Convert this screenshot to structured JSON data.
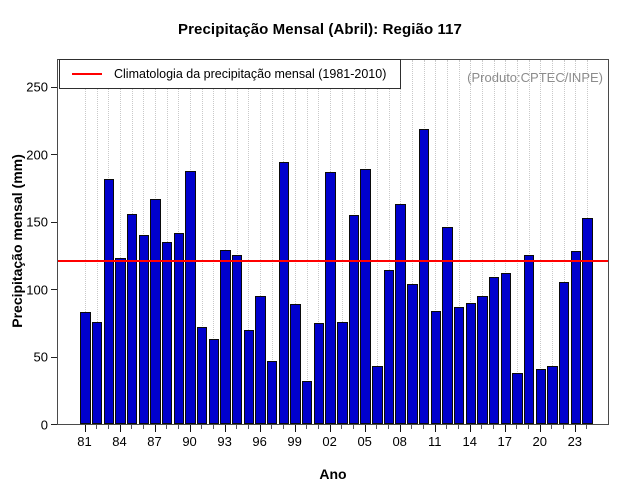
{
  "chart_data": {
    "type": "bar",
    "title": "Precipitação Mensal (Abril): Região 117",
    "xlabel": "Ano",
    "ylabel": "Precipitação mensal (mm)",
    "annotation": "(Produto:CPTEC/INPE)",
    "legend_label": "Climatologia da precipitação mensal (1981-2010)",
    "legend_position": "top-left-inside",
    "grid": "vertical-dotted",
    "x": [
      1981,
      1982,
      1983,
      1984,
      1985,
      1986,
      1987,
      1988,
      1989,
      1990,
      1991,
      1992,
      1993,
      1994,
      1995,
      1996,
      1997,
      1998,
      1999,
      2000,
      2001,
      2002,
      2003,
      2004,
      2005,
      2006,
      2007,
      2008,
      2009,
      2010,
      2011,
      2012,
      2013,
      2014,
      2015,
      2016,
      2017,
      2018,
      2019,
      2020,
      2021,
      2022,
      2023,
      2024
    ],
    "values": [
      83,
      76,
      182,
      123,
      156,
      140,
      167,
      135,
      142,
      188,
      72,
      63,
      129,
      125,
      70,
      95,
      47,
      194,
      89,
      32,
      75,
      187,
      76,
      155,
      189,
      43,
      114,
      163,
      104,
      219,
      84,
      146,
      87,
      90,
      95,
      109,
      112,
      38,
      125,
      41,
      43,
      105,
      128,
      153
    ],
    "x_tick_labels": [
      "81",
      "84",
      "87",
      "90",
      "93",
      "96",
      "99",
      "02",
      "05",
      "08",
      "11",
      "14",
      "17",
      "20",
      "23"
    ],
    "y_ticks": [
      0,
      50,
      100,
      150,
      200,
      250
    ],
    "ylim": [
      0,
      270
    ],
    "climatology_mm": 121,
    "colors": {
      "bar": "#0000CD",
      "bar_border": "#0a0a0a",
      "climatology_line": "#ff0000",
      "annotation_text": "#8c8c8c",
      "grid": "#c9c9c9"
    }
  }
}
